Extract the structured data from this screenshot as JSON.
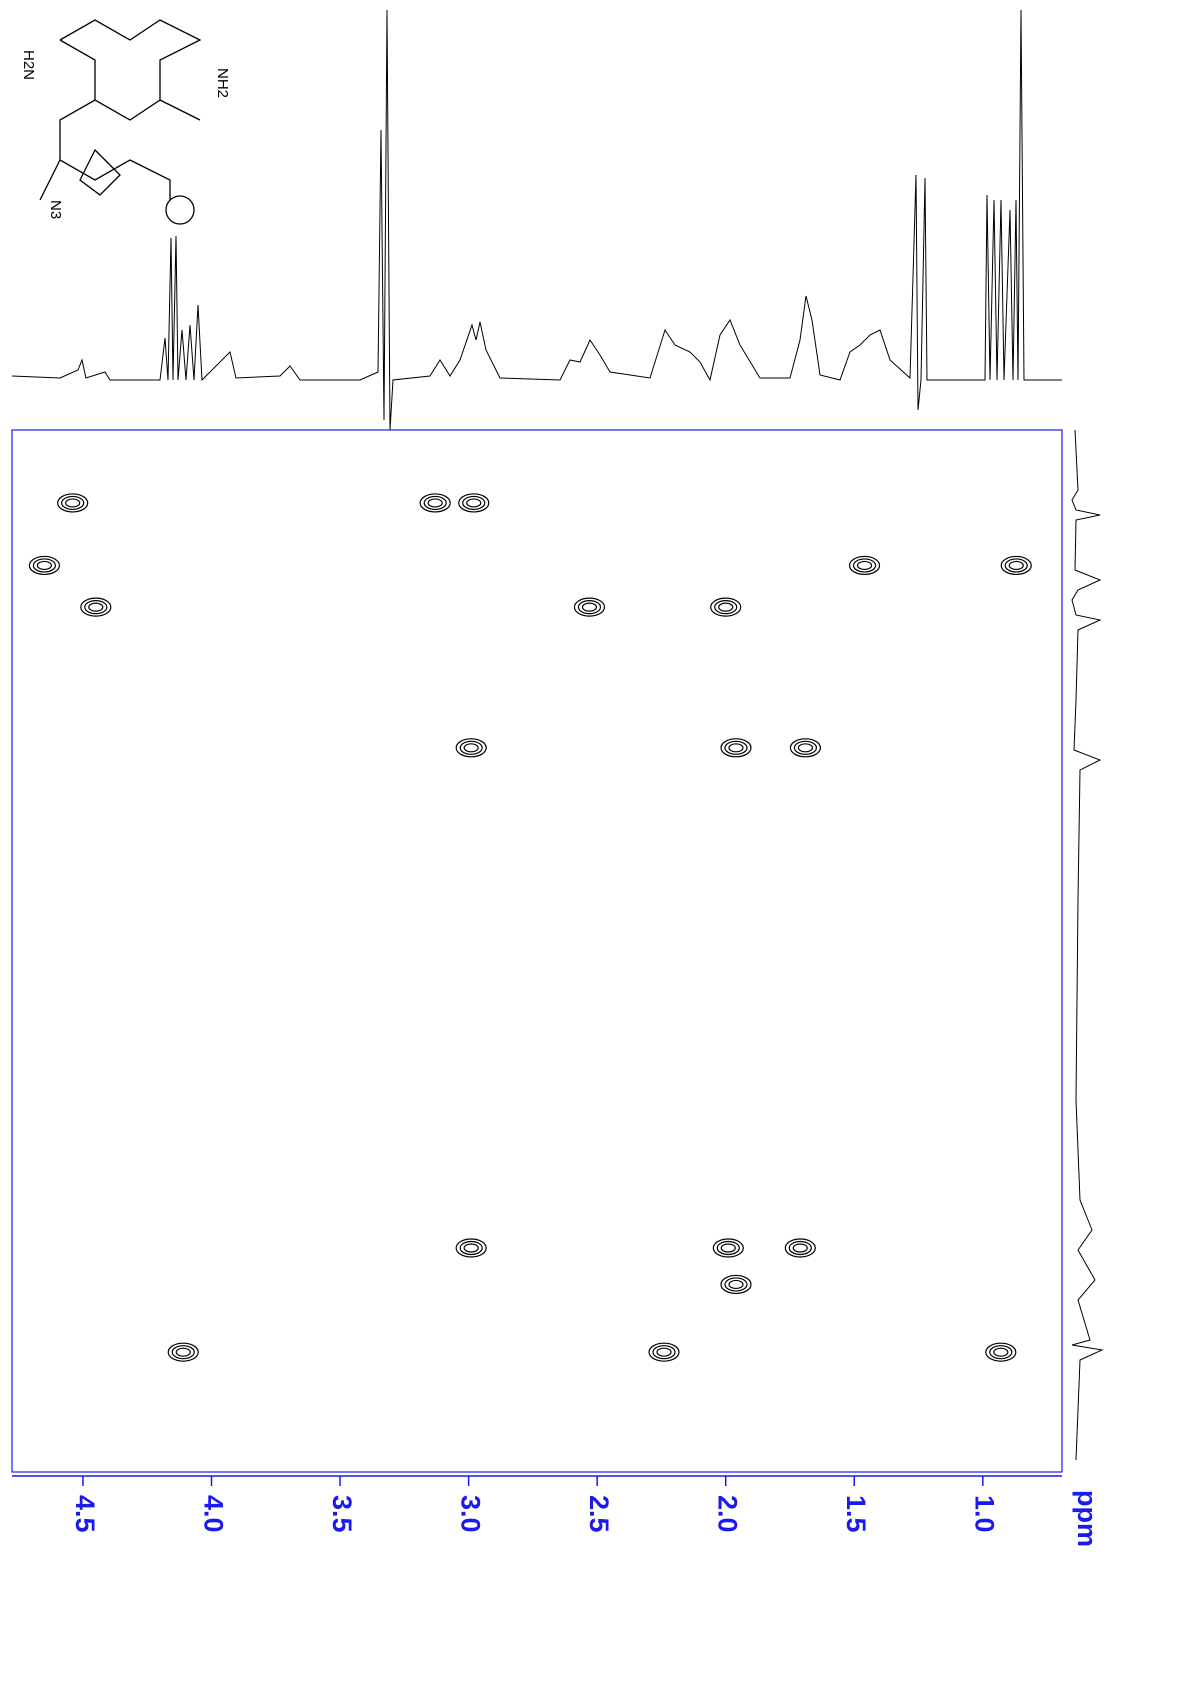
{
  "chart_data": {
    "type": "nmr2d",
    "x_label": "ppm",
    "xlim": [
      4.776,
      0.692
    ],
    "xticks": [
      4.5,
      {
        "value": 4.0,
        "label": "4.0"
      },
      3.5,
      {
        "value": 3.0,
        "label": "3.0"
      },
      2.5,
      {
        "value": 2.0,
        "label": "2.0"
      },
      1.5,
      {
        "value": 1.0,
        "label": "1.0"
      }
    ],
    "ylim": [
      9.0,
      7.0
    ],
    "color": "#000000",
    "axis_color": "#1a1aee",
    "peaks": {
      "x": [
        4.54,
        3.13,
        2.98,
        4.65,
        1.46,
        0.87,
        4.45,
        2.53,
        2.0,
        2.99,
        1.96,
        1.69,
        2.99,
        1.99,
        1.71,
        1.96,
        4.11,
        2.24,
        0.93
      ],
      "y": [
        8.86,
        8.86,
        8.86,
        8.74,
        8.74,
        8.74,
        8.66,
        8.66,
        8.66,
        8.39,
        8.39,
        8.39,
        7.43,
        7.43,
        7.43,
        7.36,
        7.23,
        7.23,
        7.23
      ]
    }
  },
  "structure": {
    "labels": [
      "H2N",
      "NH2",
      "N3"
    ]
  }
}
